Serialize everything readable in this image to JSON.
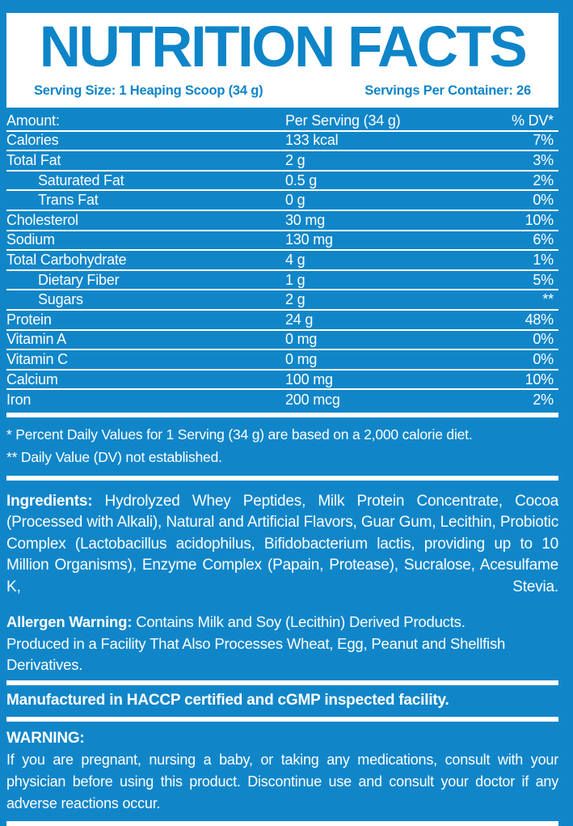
{
  "header": {
    "title": "NUTRITION FACTS",
    "serving_size": "Serving Size: 1 Heaping Scoop (34 g)",
    "servings_per_container": "Servings Per Container: 26"
  },
  "table": {
    "columns": [
      "Amount:",
      "Per Serving (34 g)",
      "% DV*"
    ],
    "rows": [
      {
        "name": "Calories",
        "amount": "133 kcal",
        "dv": "7%",
        "indent": false
      },
      {
        "name": "Total Fat",
        "amount": "2 g",
        "dv": "3%",
        "indent": false
      },
      {
        "name": "Saturated Fat",
        "amount": "0.5 g",
        "dv": "2%",
        "indent": true
      },
      {
        "name": "Trans Fat",
        "amount": "0 g",
        "dv": "0%",
        "indent": true
      },
      {
        "name": "Cholesterol",
        "amount": "30 mg",
        "dv": "10%",
        "indent": false
      },
      {
        "name": "Sodium",
        "amount": "130 mg",
        "dv": "6%",
        "indent": false
      },
      {
        "name": "Total Carbohydrate",
        "amount": "4 g",
        "dv": "1%",
        "indent": false
      },
      {
        "name": "Dietary Fiber",
        "amount": "1 g",
        "dv": "5%",
        "indent": true
      },
      {
        "name": "Sugars",
        "amount": "2 g",
        "dv": "**",
        "indent": true
      },
      {
        "name": "Protein",
        "amount": "24 g",
        "dv": "48%",
        "indent": false
      },
      {
        "name": "Vitamin A",
        "amount": "0 mg",
        "dv": "0%",
        "indent": false
      },
      {
        "name": "Vitamin C",
        "amount": "0 mg",
        "dv": "0%",
        "indent": false
      },
      {
        "name": "Calcium",
        "amount": "100 mg",
        "dv": "10%",
        "indent": false
      },
      {
        "name": "Iron",
        "amount": "200 mcg",
        "dv": "2%",
        "indent": false
      }
    ]
  },
  "footnotes": {
    "dv_note": "* Percent Daily Values for 1 Serving (34 g) are based on a 2,000 calorie diet.",
    "not_established_note": "** Daily Value (DV) not established."
  },
  "ingredients": {
    "label": "Ingredients:",
    "text": "Hydrolyzed Whey Peptides, Milk Protein Concentrate, Cocoa (Processed with Alkali), Natural and Artificial Flavors, Guar Gum, Lecithin, Probiotic Complex (Lactobacillus acidophilus, Bifidobacterium lactis, providing up to 10 Million Organisms), Enzyme Complex (Papain, Protease), Sucralose, Acesulfame K, Stevia."
  },
  "allergen": {
    "label": "Allergen Warning:",
    "line1": "Contains Milk and Soy (Lecithin) Derived Products.",
    "line2": "Produced in a Facility That Also Processes Wheat, Egg, Peanut and Shellfish Derivatives."
  },
  "manufactured": "Manufactured in HACCP certified and cGMP inspected facility.",
  "warning": {
    "label": "WARNING:",
    "text": "If you are pregnant, nursing a baby, or taking any medications, consult with your physician before using this product. Discontinue use and consult your doctor if any adverse reactions occur."
  },
  "colors": {
    "background_blue": "#1086c9",
    "panel_white": "#ffffff",
    "title_blue": "#0e85c8",
    "text_white": "#ffffff"
  }
}
